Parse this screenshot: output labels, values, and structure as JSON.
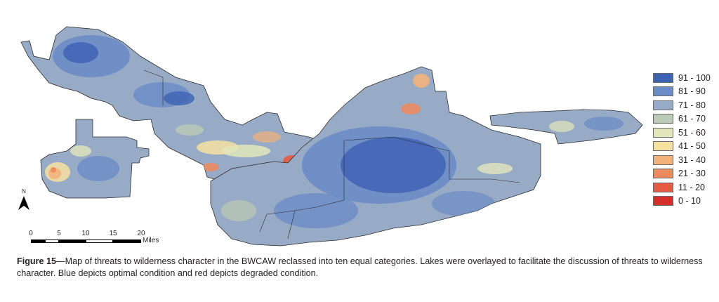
{
  "legend": {
    "items": [
      {
        "label": "91 - 100",
        "color": "#3f63b4"
      },
      {
        "label": "81 - 90",
        "color": "#6b8cc6"
      },
      {
        "label": "71 - 80",
        "color": "#98abc6"
      },
      {
        "label": "61 - 70",
        "color": "#bccbb5"
      },
      {
        "label": "51 - 60",
        "color": "#e2e6bb"
      },
      {
        "label": "41 - 50",
        "color": "#f6e0a0"
      },
      {
        "label": "31 - 40",
        "color": "#f3b27a"
      },
      {
        "label": "21 - 30",
        "color": "#ec8a5f"
      },
      {
        "label": "11 - 20",
        "color": "#e45a43"
      },
      {
        "label": "0 - 10",
        "color": "#d62f2b"
      }
    ]
  },
  "north_arrow": {
    "letter": "N"
  },
  "scale_bar": {
    "ticks": [
      "0",
      "5",
      "10",
      "15",
      "20"
    ],
    "unit": "Miles"
  },
  "caption": {
    "label": "Figure 15",
    "text": "—Map of threats to wilderness character in the BWCAW reclassed into ten equal categories. Lakes were overlayed to facilitate the discussion of threats to wilderness character. Blue depicts optimal condition and red depicts degraded condition."
  },
  "map": {
    "base_color": "#98abc6",
    "high_color": "#6b8cc6",
    "optimal_color": "#3f63b4",
    "outline_color": "#2b2b2b"
  }
}
